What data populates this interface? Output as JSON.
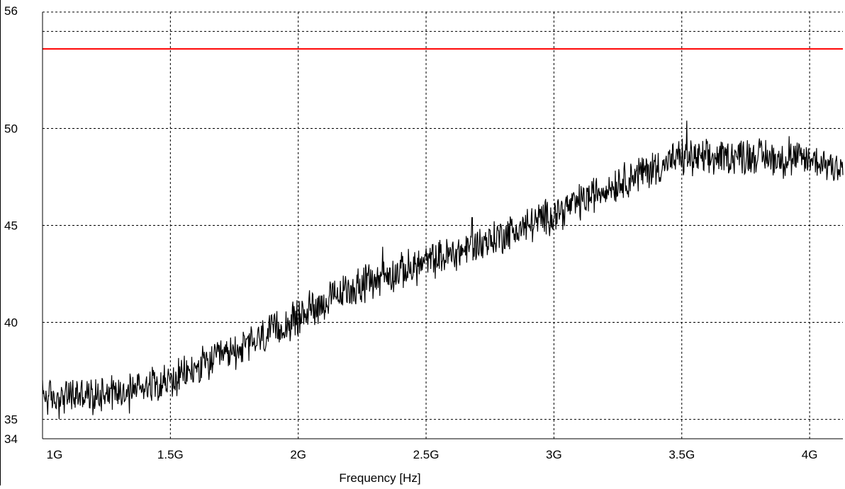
{
  "chart_data": {
    "type": "line",
    "title": "",
    "xlabel": "Frequency [Hz]",
    "ylabel": "",
    "xlim": [
      1.0,
      4.13
    ],
    "ylim": [
      34,
      56
    ],
    "x_ticks": [
      {
        "value": 1.0,
        "label": "1G"
      },
      {
        "value": 1.5,
        "label": "1.5G"
      },
      {
        "value": 2.0,
        "label": "2G"
      },
      {
        "value": 2.5,
        "label": "2.5G"
      },
      {
        "value": 3.0,
        "label": "3G"
      },
      {
        "value": 3.5,
        "label": "3.5G"
      },
      {
        "value": 4.0,
        "label": "4G"
      }
    ],
    "y_ticks": [
      {
        "value": 34,
        "label": "34"
      },
      {
        "value": 35,
        "label": "35"
      },
      {
        "value": 40,
        "label": "40"
      },
      {
        "value": 45,
        "label": "45"
      },
      {
        "value": 50,
        "label": "50"
      },
      {
        "value": 56,
        "label": "56"
      }
    ],
    "extra_gridlines_y": [
      55
    ],
    "grid": true,
    "series": [
      {
        "color": "#000000",
        "style": "noisy",
        "x": [
          1.0,
          1.05,
          1.1,
          1.15,
          1.2,
          1.25,
          1.3,
          1.35,
          1.4,
          1.45,
          1.5,
          1.6,
          1.7,
          1.8,
          1.9,
          2.0,
          2.05,
          2.1,
          2.15,
          2.2,
          2.3,
          2.4,
          2.5,
          2.6,
          2.7,
          2.8,
          2.9,
          3.0,
          3.1,
          3.2,
          3.3,
          3.4,
          3.5,
          3.6,
          3.7,
          3.8,
          3.9,
          4.0,
          4.13
        ],
        "y": [
          36.3,
          36.0,
          36.2,
          36.3,
          36.1,
          36.6,
          36.4,
          36.6,
          36.8,
          37.0,
          36.9,
          37.6,
          38.2,
          38.8,
          39.5,
          40.2,
          40.8,
          41.0,
          41.3,
          41.7,
          42.2,
          42.6,
          43.1,
          43.5,
          44.0,
          44.5,
          45.0,
          45.6,
          46.2,
          46.9,
          47.5,
          48.0,
          48.5,
          48.4,
          48.6,
          48.6,
          48.4,
          48.4,
          48.0
        ],
        "spikes": [
          {
            "x": 3.52,
            "y": 50.4
          },
          {
            "x": 2.68,
            "y": 45.4
          },
          {
            "x": 2.33,
            "y": 43.9
          },
          {
            "x": 1.34,
            "y": 35.3
          },
          {
            "x": 3.92,
            "y": 49.6
          }
        ]
      },
      {
        "color": "#ff0000",
        "style": "flat",
        "x": [
          1.0,
          4.13
        ],
        "y": [
          54.1,
          54.1
        ]
      }
    ]
  }
}
